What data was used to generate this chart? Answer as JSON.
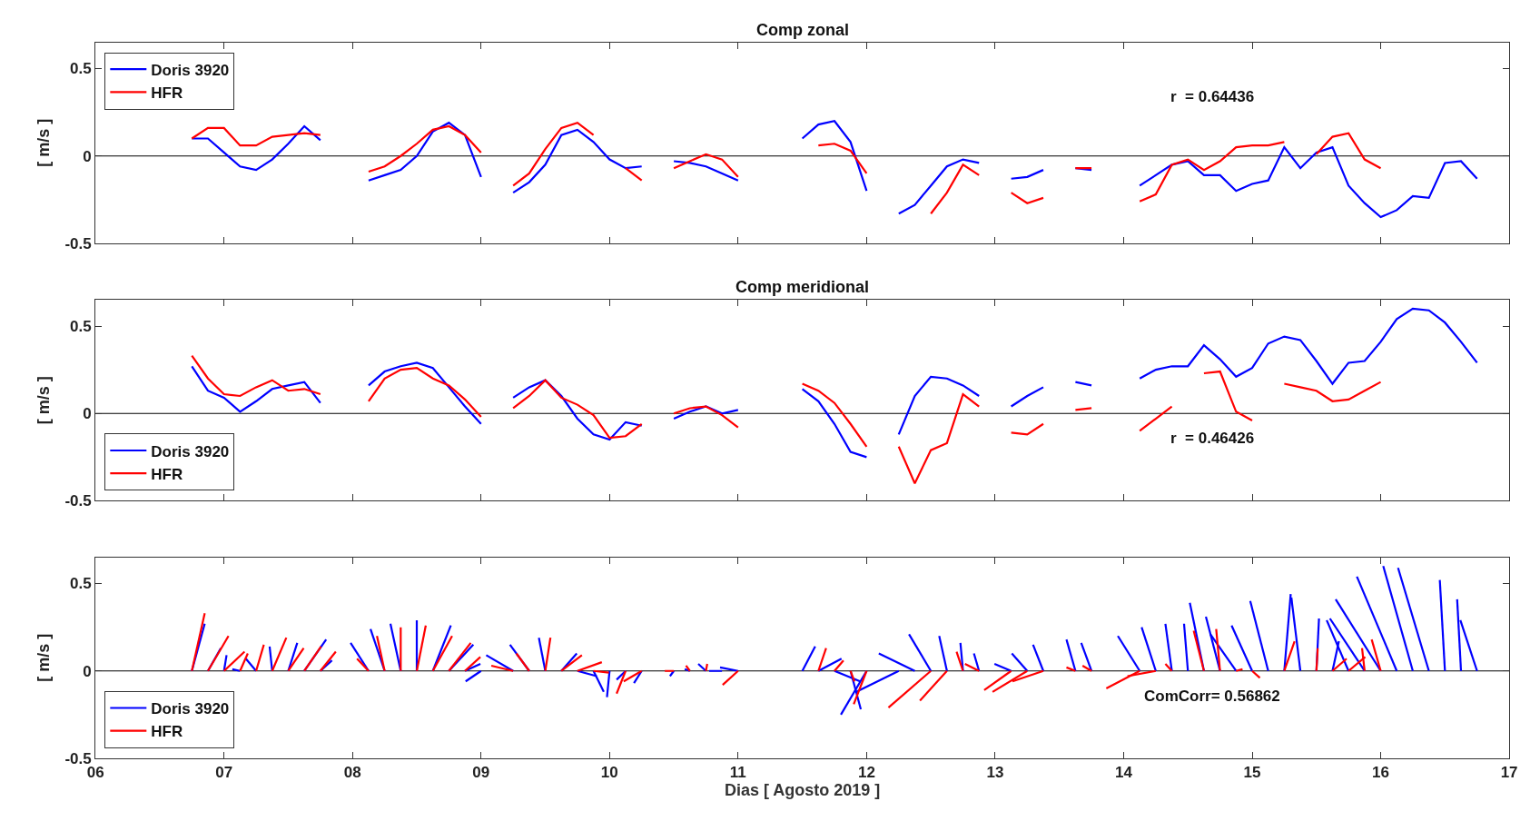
{
  "chart_data": [
    {
      "type": "line",
      "title": "Comp zonal",
      "ylabel": "[ m/s ]",
      "legend": "top left",
      "tick_labels": "y",
      "annotations": [
        "r  = 0.64436"
      ],
      "xlim": [
        6,
        17
      ],
      "xticks": [
        {
          "value": 6,
          "label": null
        },
        {
          "value": 7,
          "label": null
        },
        {
          "value": 8,
          "label": null
        },
        {
          "value": 9,
          "label": null
        },
        {
          "value": 10,
          "label": null
        },
        {
          "value": 11,
          "label": null
        },
        {
          "value": 12,
          "label": null
        },
        {
          "value": 13,
          "label": null
        },
        {
          "value": 14,
          "label": null
        },
        {
          "value": 15,
          "label": null
        },
        {
          "value": 16,
          "label": null
        },
        {
          "value": 17,
          "label": null
        }
      ],
      "ylim": [
        -0.5,
        0.65
      ],
      "yticks": [
        -0.5,
        0,
        0.5
      ],
      "ref_lines": [
        {
          "axis": "y",
          "value": 0,
          "color": "#000000"
        }
      ],
      "x": [
        6.75,
        6.875,
        7,
        7.125,
        7.25,
        7.375,
        7.5,
        7.625,
        7.75,
        7.875,
        8,
        8.125,
        8.25,
        8.375,
        8.5,
        8.625,
        8.75,
        8.875,
        9,
        9.125,
        9.25,
        9.375,
        9.5,
        9.625,
        9.75,
        9.875,
        10,
        10.125,
        10.25,
        10.375,
        10.5,
        10.625,
        10.75,
        10.875,
        11,
        11.125,
        11.25,
        11.375,
        11.5,
        11.625,
        11.75,
        11.875,
        12,
        12.125,
        12.25,
        12.375,
        12.5,
        12.625,
        12.75,
        12.875,
        13,
        13.125,
        13.25,
        13.375,
        13.5,
        13.625,
        13.75,
        13.875,
        14,
        14.125,
        14.25,
        14.375,
        14.5,
        14.625,
        14.75,
        14.875,
        15,
        15.125,
        15.25,
        15.375,
        15.5,
        15.625,
        15.75,
        15.875,
        16,
        16.125,
        16.25,
        16.375,
        16.5,
        16.625,
        16.75
      ],
      "series": [
        {
          "name": "Doris 3920",
          "color": "#0000ff",
          "values": [
            0.1,
            0.1,
            0.02,
            -0.06,
            -0.08,
            -0.02,
            0.07,
            0.17,
            0.09,
            null,
            null,
            -0.14,
            -0.11,
            -0.08,
            0.0,
            0.14,
            0.19,
            0.12,
            -0.12,
            null,
            -0.21,
            -0.15,
            -0.05,
            0.12,
            0.15,
            0.08,
            -0.02,
            -0.07,
            -0.06,
            null,
            -0.03,
            -0.04,
            -0.06,
            -0.1,
            -0.14,
            null,
            null,
            null,
            0.1,
            0.18,
            0.2,
            0.08,
            -0.2,
            null,
            -0.33,
            -0.28,
            -0.17,
            -0.06,
            -0.02,
            -0.04,
            null,
            -0.13,
            -0.12,
            -0.08,
            null,
            -0.07,
            -0.08,
            null,
            null,
            -0.17,
            -0.11,
            -0.05,
            -0.03,
            -0.11,
            -0.11,
            -0.2,
            -0.16,
            -0.14,
            0.05,
            -0.07,
            0.02,
            0.05,
            -0.17,
            -0.27,
            -0.35,
            -0.31,
            -0.23,
            -0.24,
            -0.04,
            -0.03,
            -0.13
          ]
        },
        {
          "name": "HFR",
          "color": "#ff0000",
          "values": [
            0.1,
            0.16,
            0.16,
            0.06,
            0.06,
            0.11,
            0.12,
            0.13,
            0.12,
            null,
            null,
            -0.09,
            -0.06,
            0.0,
            0.07,
            0.15,
            0.17,
            0.12,
            0.02,
            null,
            -0.17,
            -0.1,
            0.04,
            0.16,
            0.19,
            0.12,
            null,
            -0.07,
            -0.14,
            null,
            -0.07,
            -0.03,
            0.01,
            -0.02,
            -0.12,
            null,
            null,
            null,
            null,
            0.06,
            0.07,
            0.03,
            -0.1,
            null,
            null,
            null,
            -0.33,
            -0.21,
            -0.05,
            -0.11,
            null,
            -0.21,
            -0.27,
            -0.24,
            null,
            -0.07,
            -0.07,
            null,
            null,
            -0.26,
            -0.22,
            -0.05,
            -0.02,
            -0.08,
            -0.03,
            0.05,
            0.06,
            0.06,
            0.08,
            null,
            0.01,
            0.11,
            0.13,
            -0.02,
            -0.07,
            null,
            null,
            null,
            null,
            null,
            null
          ]
        }
      ]
    },
    {
      "type": "line",
      "title": "Comp meridional",
      "ylabel": "[ m/s ]",
      "legend": "bottom left",
      "tick_labels": "y",
      "annotations": [
        "r  = 0.46426"
      ],
      "xlim": [
        6,
        17
      ],
      "xticks": [
        {
          "value": 6,
          "label": null
        },
        {
          "value": 7,
          "label": null
        },
        {
          "value": 8,
          "label": null
        },
        {
          "value": 9,
          "label": null
        },
        {
          "value": 10,
          "label": null
        },
        {
          "value": 11,
          "label": null
        },
        {
          "value": 12,
          "label": null
        },
        {
          "value": 13,
          "label": null
        },
        {
          "value": 14,
          "label": null
        },
        {
          "value": 15,
          "label": null
        },
        {
          "value": 16,
          "label": null
        },
        {
          "value": 17,
          "label": null
        }
      ],
      "ylim": [
        -0.5,
        0.65
      ],
      "yticks": [
        -0.5,
        0,
        0.5
      ],
      "ref_lines": [
        {
          "axis": "y",
          "value": 0,
          "color": "#000000"
        }
      ],
      "x": [
        6.75,
        6.875,
        7,
        7.125,
        7.25,
        7.375,
        7.5,
        7.625,
        7.75,
        7.875,
        8,
        8.125,
        8.25,
        8.375,
        8.5,
        8.625,
        8.75,
        8.875,
        9,
        9.125,
        9.25,
        9.375,
        9.5,
        9.625,
        9.75,
        9.875,
        10,
        10.125,
        10.25,
        10.375,
        10.5,
        10.625,
        10.75,
        10.875,
        11,
        11.125,
        11.25,
        11.375,
        11.5,
        11.625,
        11.75,
        11.875,
        12,
        12.125,
        12.25,
        12.375,
        12.5,
        12.625,
        12.75,
        12.875,
        13,
        13.125,
        13.25,
        13.375,
        13.5,
        13.625,
        13.75,
        13.875,
        14,
        14.125,
        14.25,
        14.375,
        14.5,
        14.625,
        14.75,
        14.875,
        15,
        15.125,
        15.25,
        15.375,
        15.5,
        15.625,
        15.75,
        15.875,
        16,
        16.125,
        16.25,
        16.375,
        16.5,
        16.625,
        16.75
      ],
      "series": [
        {
          "name": "Doris 3920",
          "color": "#0000ff",
          "values": [
            0.27,
            0.13,
            0.09,
            0.01,
            0.07,
            0.14,
            0.16,
            0.18,
            0.06,
            null,
            null,
            0.16,
            0.24,
            0.27,
            0.29,
            0.26,
            0.15,
            0.04,
            -0.06,
            null,
            0.09,
            0.15,
            0.19,
            0.1,
            -0.03,
            -0.12,
            -0.15,
            -0.05,
            -0.07,
            null,
            -0.03,
            0.01,
            0.04,
            0.0,
            0.02,
            null,
            null,
            null,
            0.14,
            0.07,
            -0.06,
            -0.22,
            -0.25,
            null,
            -0.12,
            0.1,
            0.21,
            0.2,
            0.16,
            0.1,
            null,
            0.04,
            0.1,
            0.15,
            null,
            0.18,
            0.16,
            null,
            null,
            0.2,
            0.25,
            0.27,
            0.27,
            0.39,
            0.31,
            0.21,
            0.26,
            0.4,
            0.44,
            0.42,
            0.3,
            0.17,
            0.29,
            0.3,
            0.41,
            0.54,
            0.6,
            0.59,
            0.52,
            0.41,
            0.29
          ]
        },
        {
          "name": "HFR",
          "color": "#ff0000",
          "values": [
            0.33,
            0.2,
            0.11,
            0.1,
            0.15,
            0.19,
            0.13,
            0.14,
            0.11,
            null,
            null,
            0.07,
            0.2,
            0.25,
            0.26,
            0.2,
            0.16,
            0.08,
            -0.02,
            null,
            0.03,
            0.1,
            0.19,
            0.09,
            0.05,
            -0.01,
            -0.14,
            -0.13,
            -0.06,
            null,
            0.0,
            0.03,
            0.04,
            -0.01,
            -0.08,
            null,
            null,
            null,
            0.17,
            0.13,
            0.06,
            -0.06,
            -0.19,
            null,
            -0.19,
            -0.4,
            -0.21,
            -0.17,
            0.11,
            0.04,
            null,
            -0.11,
            -0.12,
            -0.06,
            null,
            0.02,
            0.03,
            null,
            null,
            -0.1,
            -0.03,
            0.04,
            null,
            0.23,
            0.24,
            0.01,
            -0.04,
            null,
            0.17,
            0.15,
            0.13,
            0.07,
            0.08,
            0.13,
            0.18,
            null,
            null,
            null,
            null,
            null,
            null
          ]
        }
      ]
    },
    {
      "type": "line",
      "xlabel": "Dias [ Agosto 2019 ]",
      "ylabel": "[ m/s ]",
      "legend": "bottom left",
      "annotations": [
        "ComCorr= 0.56862"
      ],
      "xlim": [
        6,
        17
      ],
      "xticks": [
        {
          "value": 6,
          "label": "06"
        },
        {
          "value": 7,
          "label": "07"
        },
        {
          "value": 8,
          "label": "08"
        },
        {
          "value": 9,
          "label": "09"
        },
        {
          "value": 10,
          "label": "10"
        },
        {
          "value": 11,
          "label": "11"
        },
        {
          "value": 12,
          "label": "12"
        },
        {
          "value": 13,
          "label": "13"
        },
        {
          "value": 14,
          "label": "14"
        },
        {
          "value": 15,
          "label": "15"
        },
        {
          "value": 16,
          "label": "16"
        },
        {
          "value": 17,
          "label": "17"
        }
      ],
      "ylim": [
        -0.5,
        0.65
      ],
      "yticks": [
        -0.5,
        0,
        0.5
      ],
      "ref_lines": [
        {
          "axis": "y",
          "value": 0,
          "color": "#000000"
        }
      ],
      "series": [
        {
          "name": "Doris 3920",
          "color": "#0000ff",
          "x": [
            6.75,
            6.85,
            null,
            6.875,
            6.975,
            null,
            7,
            7.02,
            null,
            7.125,
            7.065,
            null,
            7.25,
            7.17,
            null,
            7.375,
            7.355,
            null,
            7.5,
            7.57,
            null,
            7.625,
            7.795,
            null,
            7.75,
            7.84,
            null,
            8.125,
            7.985,
            null,
            8.25,
            8.14,
            null,
            8.375,
            8.295,
            null,
            8.5,
            8.5,
            null,
            8.625,
            8.765,
            null,
            8.75,
            8.94,
            null,
            8.875,
            8.995,
            null,
            9,
            8.88,
            null,
            9.25,
            9.04,
            null,
            9.375,
            9.225,
            null,
            9.5,
            9.45,
            null,
            9.625,
            9.745,
            null,
            9.75,
            9.9,
            null,
            9.875,
            9.955,
            null,
            10,
            9.98,
            null,
            10.125,
            10.055,
            null,
            10.25,
            10.19,
            null,
            10.5,
            10.47,
            null,
            10.625,
            10.585,
            null,
            10.75,
            10.69,
            null,
            10.875,
            10.775,
            null,
            11,
            10.86,
            null,
            11.5,
            11.6,
            null,
            11.625,
            11.805,
            null,
            11.75,
            11.95,
            null,
            11.875,
            11.955,
            null,
            12,
            11.8,
            null,
            12.25,
            11.92,
            null,
            12.375,
            12.095,
            null,
            12.5,
            12.33,
            null,
            12.625,
            12.565,
            null,
            12.75,
            12.73,
            null,
            12.875,
            12.835,
            null,
            13.125,
            12.995,
            null,
            13.25,
            13.13,
            null,
            13.375,
            13.295,
            null,
            13.625,
            13.555,
            null,
            13.75,
            13.67,
            null,
            14.125,
            13.955,
            null,
            14.25,
            14.14,
            null,
            14.375,
            14.325,
            null,
            14.5,
            14.47,
            null,
            14.625,
            14.515,
            null,
            14.75,
            14.64,
            null,
            14.875,
            14.675,
            null,
            15,
            14.84,
            null,
            15.125,
            14.985,
            null,
            15.25,
            15.3,
            null,
            15.375,
            15.305,
            null,
            15.5,
            15.52,
            null,
            15.625,
            15.675,
            null,
            15.75,
            15.58,
            null,
            15.875,
            15.605,
            null,
            16,
            15.65,
            null,
            16.125,
            15.815,
            null,
            16.25,
            16.02,
            null,
            16.375,
            16.135,
            null,
            16.5,
            16.46,
            null,
            16.625,
            16.595,
            null,
            16.75,
            16.62,
            null
          ],
          "values": [
            0,
            0.27,
            null,
            0,
            0.13,
            null,
            0,
            0.09,
            null,
            0,
            0.01,
            null,
            0,
            0.07,
            null,
            0,
            0.14,
            null,
            0,
            0.16,
            null,
            0,
            0.18,
            null,
            0,
            0.06,
            null,
            0,
            0.16,
            null,
            0,
            0.24,
            null,
            0,
            0.27,
            null,
            0,
            0.29,
            null,
            0,
            0.26,
            null,
            0,
            0.15,
            null,
            0,
            0.04,
            null,
            0,
            -0.06,
            null,
            0,
            0.09,
            null,
            0,
            0.15,
            null,
            0,
            0.19,
            null,
            0,
            0.1,
            null,
            0,
            -0.03,
            null,
            0,
            -0.12,
            null,
            0,
            -0.15,
            null,
            0,
            -0.05,
            null,
            0,
            -0.07,
            null,
            0,
            -0.03,
            null,
            0,
            0.01,
            null,
            0,
            0.04,
            null,
            0,
            0.0,
            null,
            0,
            0.02,
            null,
            0,
            0.14,
            null,
            0,
            0.07,
            null,
            0,
            -0.06,
            null,
            0,
            -0.22,
            null,
            0,
            -0.25,
            null,
            0,
            -0.12,
            null,
            0,
            0.1,
            null,
            0,
            0.21,
            null,
            0,
            0.2,
            null,
            0,
            0.16,
            null,
            0,
            0.1,
            null,
            0,
            0.04,
            null,
            0,
            0.1,
            null,
            0,
            0.15,
            null,
            0,
            0.18,
            null,
            0,
            0.16,
            null,
            0,
            0.2,
            null,
            0,
            0.25,
            null,
            0,
            0.27,
            null,
            0,
            0.27,
            null,
            0,
            0.39,
            null,
            0,
            0.31,
            null,
            0,
            0.21,
            null,
            0,
            0.26,
            null,
            0,
            0.4,
            null,
            0,
            0.44,
            null,
            0,
            0.42,
            null,
            0,
            0.3,
            null,
            0,
            0.17,
            null,
            0,
            0.29,
            null,
            0,
            0.3,
            null,
            0,
            0.41,
            null,
            0,
            0.54,
            null,
            0,
            0.6,
            null,
            0,
            0.59,
            null,
            0,
            0.52,
            null,
            0,
            0.41,
            null,
            0,
            0.29,
            null
          ]
        },
        {
          "name": "HFR",
          "color": "#ff0000",
          "x": [
            6.75,
            6.85,
            null,
            6.875,
            7.035,
            null,
            7,
            7.16,
            null,
            7.125,
            7.185,
            null,
            7.25,
            7.31,
            null,
            7.375,
            7.485,
            null,
            7.5,
            7.62,
            null,
            7.625,
            7.755,
            null,
            7.75,
            7.87,
            null,
            8.125,
            8.035,
            null,
            8.25,
            8.19,
            null,
            8.375,
            8.375,
            null,
            8.5,
            8.57,
            null,
            8.625,
            8.775,
            null,
            8.75,
            8.92,
            null,
            8.875,
            8.995,
            null,
            9.25,
            9.08,
            null,
            9.375,
            9.275,
            null,
            9.5,
            9.54,
            null,
            9.625,
            9.785,
            null,
            9.75,
            9.94,
            null,
            9.875,
            9.995,
            null,
            10.125,
            10.055,
            null,
            10.25,
            10.11,
            null,
            10.5,
            10.43,
            null,
            10.625,
            10.595,
            null,
            10.75,
            10.76,
            null,
            11,
            10.88,
            null,
            11.625,
            11.685,
            null,
            11.75,
            11.82,
            null,
            11.875,
            11.905,
            null,
            12,
            11.9,
            null,
            12.5,
            12.17,
            null,
            12.625,
            12.415,
            null,
            12.75,
            12.7,
            null,
            12.875,
            12.765,
            null,
            13.125,
            12.915,
            null,
            13.25,
            12.98,
            null,
            13.375,
            13.135,
            null,
            13.625,
            13.555,
            null,
            13.75,
            13.68,
            null,
            14.125,
            13.865,
            null,
            14.25,
            14.03,
            null,
            14.375,
            14.325,
            null,
            14.625,
            14.545,
            null,
            14.75,
            14.72,
            null,
            14.875,
            14.925,
            null,
            15,
            15.06,
            null,
            15.25,
            15.33,
            null,
            15.5,
            15.51,
            null,
            15.625,
            15.735,
            null,
            15.75,
            15.88,
            null,
            15.875,
            15.855,
            null,
            16,
            15.93,
            null
          ],
          "values": [
            0,
            0.33,
            null,
            0,
            0.2,
            null,
            0,
            0.11,
            null,
            0,
            0.1,
            null,
            0,
            0.15,
            null,
            0,
            0.19,
            null,
            0,
            0.13,
            null,
            0,
            0.14,
            null,
            0,
            0.11,
            null,
            0,
            0.07,
            null,
            0,
            0.2,
            null,
            0,
            0.25,
            null,
            0,
            0.26,
            null,
            0,
            0.2,
            null,
            0,
            0.16,
            null,
            0,
            0.08,
            null,
            0,
            0.03,
            null,
            0,
            0.1,
            null,
            0,
            0.19,
            null,
            0,
            0.09,
            null,
            0,
            0.05,
            null,
            0,
            -0.01,
            null,
            0,
            -0.13,
            null,
            0,
            -0.06,
            null,
            0,
            0.0,
            null,
            0,
            0.03,
            null,
            0,
            0.04,
            null,
            0,
            -0.08,
            null,
            0,
            0.13,
            null,
            0,
            0.06,
            null,
            0,
            -0.06,
            null,
            0,
            -0.19,
            null,
            0,
            -0.21,
            null,
            0,
            -0.17,
            null,
            0,
            0.11,
            null,
            0,
            0.04,
            null,
            0,
            -0.11,
            null,
            0,
            -0.12,
            null,
            0,
            -0.06,
            null,
            0,
            0.02,
            null,
            0,
            0.03,
            null,
            0,
            -0.1,
            null,
            0,
            -0.03,
            null,
            0,
            0.04,
            null,
            0,
            0.23,
            null,
            0,
            0.24,
            null,
            0,
            0.01,
            null,
            0,
            -0.04,
            null,
            0,
            0.17,
            null,
            0,
            0.13,
            null,
            0,
            0.07,
            null,
            0,
            0.08,
            null,
            0,
            0.13,
            null,
            0,
            0.18,
            null
          ]
        }
      ]
    }
  ]
}
